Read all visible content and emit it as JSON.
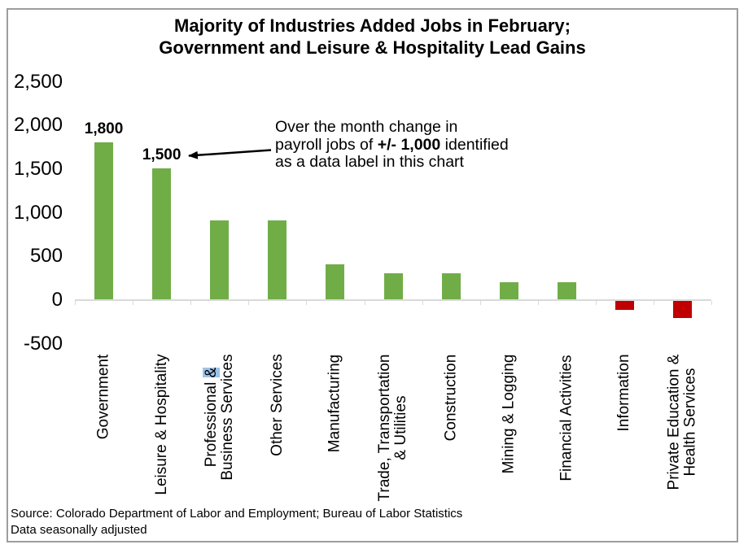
{
  "title": {
    "line1": "Majority of Industries Added Jobs in February;",
    "line2": "Government and Leisure & Hospitality Lead Gains"
  },
  "annotation": {
    "line1": "Over the month change in",
    "line2_pre": "payroll jobs of ",
    "line2_bold": "+/- 1,000",
    "line2_post": " identified",
    "line3": "as a data label in this chart"
  },
  "source": {
    "line1": "Source: Colorado Department of Labor and Employment; Bureau of Labor Statistics",
    "line2": "Data seasonally adjusted"
  },
  "chart_data": {
    "type": "bar",
    "title": "Majority of Industries Added Jobs in February; Government and Leisure & Hospitality Lead Gains",
    "xlabel": "",
    "ylabel": "",
    "ylim": [
      -500,
      2500
    ],
    "grid": false,
    "legend": "none",
    "categories": [
      {
        "label": "Government",
        "lines": [
          "Government"
        ]
      },
      {
        "label": "Leisure & Hospitality",
        "lines": [
          "Leisure & Hospitality"
        ]
      },
      {
        "label": "Professional & Business Services",
        "lines": [
          "Professional &",
          "Business Services"
        ],
        "amp_highlight": true
      },
      {
        "label": "Other Services",
        "lines": [
          "Other Services"
        ]
      },
      {
        "label": "Manufacturing",
        "lines": [
          "Manufacturing"
        ]
      },
      {
        "label": "Trade, Transportation & Utilities",
        "lines": [
          "Trade, Transportation",
          "& Utilities"
        ]
      },
      {
        "label": "Construction",
        "lines": [
          "Construction"
        ]
      },
      {
        "label": "Mining & Logging",
        "lines": [
          "Mining & Logging"
        ]
      },
      {
        "label": "Financial Activities",
        "lines": [
          "Financial Activities"
        ]
      },
      {
        "label": "Information",
        "lines": [
          "Information"
        ]
      },
      {
        "label": "Private Education & Health Services",
        "lines": [
          "Private Education &",
          "Health Services"
        ]
      }
    ],
    "values": [
      1800,
      1500,
      900,
      900,
      400,
      300,
      300,
      200,
      200,
      -100,
      -200
    ],
    "bar_labels": [
      "1,800",
      "1,500",
      "",
      "",
      "",
      "",
      "",
      "",
      "",
      "",
      ""
    ],
    "y_ticks": [
      {
        "label": "2,500",
        "value": 2500
      },
      {
        "label": "2,000",
        "value": 2000
      },
      {
        "label": "1,500",
        "value": 1500
      },
      {
        "label": "1,000",
        "value": 1000
      },
      {
        "label": "500",
        "value": 500
      },
      {
        "label": "0",
        "value": 0
      },
      {
        "label": "-500",
        "value": -500
      }
    ],
    "colors": {
      "positive": "#70AD47",
      "negative": "#C00000",
      "axis": "#D9D9D9",
      "label_highlight": "#9DC3E6",
      "border": "#9D9D9D"
    }
  }
}
